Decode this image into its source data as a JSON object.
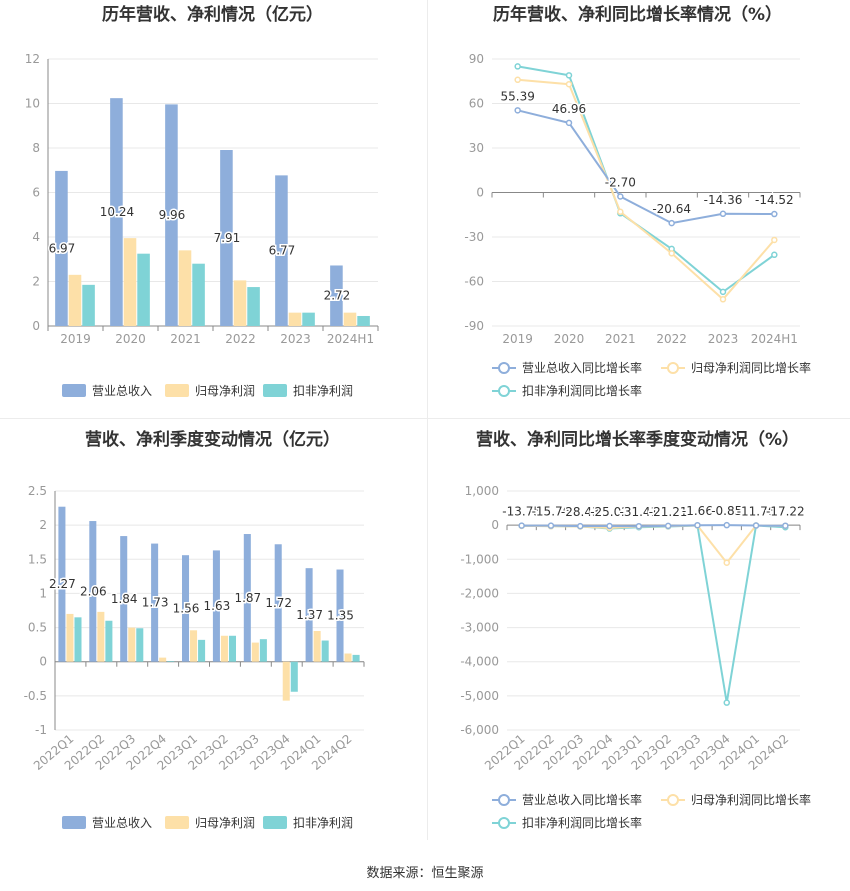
{
  "colors": {
    "revenue": "#8eaedb",
    "net_profit": "#fde0a8",
    "deducted_profit": "#7fd3d6",
    "grid": "#e8e8e8",
    "axis_text": "#999999",
    "title_text": "#333333"
  },
  "source": "数据来源：恒生聚源",
  "chart_data": [
    {
      "type": "bar",
      "title": "历年营收、净利情况（亿元）",
      "categories": [
        "2019",
        "2020",
        "2021",
        "2022",
        "2023",
        "2024H1"
      ],
      "series": [
        {
          "name": "营业总收入",
          "values": [
            6.97,
            10.24,
            9.96,
            7.91,
            6.77,
            2.72
          ],
          "labels": [
            "6.97",
            "10.24",
            "9.96",
            "7.91",
            "6.77",
            "2.72"
          ]
        },
        {
          "name": "归母净利润",
          "values": [
            2.3,
            3.95,
            3.4,
            2.05,
            0.6,
            0.6
          ]
        },
        {
          "name": "扣非净利润",
          "values": [
            1.85,
            3.25,
            2.8,
            1.75,
            0.6,
            0.45
          ]
        }
      ],
      "ylim": [
        0,
        12
      ],
      "yticks": [
        0,
        2,
        4,
        6,
        8,
        10,
        12
      ],
      "ytick_labels": [
        "0",
        "2",
        "4",
        "6",
        "8",
        "10",
        "12"
      ],
      "legend": "bottom"
    },
    {
      "type": "line",
      "title": "历年营收、净利同比增长率情况（%）",
      "categories": [
        "2019",
        "2020",
        "2021",
        "2022",
        "2023",
        "2024H1"
      ],
      "series": [
        {
          "name": "营业总收入同比增长率",
          "values": [
            55.39,
            46.96,
            -2.7,
            -20.64,
            -14.36,
            -14.52
          ],
          "labels": [
            "55.39",
            "46.96",
            "-2.70",
            "-20.64",
            "-14.36",
            "-14.52"
          ]
        },
        {
          "name": "归母净利润同比增长率",
          "values": [
            76,
            73,
            -13,
            -41,
            -72,
            -32
          ]
        },
        {
          "name": "扣非净利润同比增长率",
          "values": [
            85,
            79,
            -14,
            -38,
            -67,
            -42
          ]
        }
      ],
      "ylim": [
        -90,
        90
      ],
      "yticks": [
        -90,
        -60,
        -30,
        0,
        30,
        60,
        90
      ],
      "ytick_labels": [
        "-90",
        "-60",
        "-30",
        "0",
        "30",
        "60",
        "90"
      ],
      "legend": "bottom"
    },
    {
      "type": "bar",
      "title": "营收、净利季度变动情况（亿元）",
      "categories": [
        "2022Q1",
        "2022Q2",
        "2022Q3",
        "2022Q4",
        "2023Q1",
        "2023Q2",
        "2023Q3",
        "2023Q4",
        "2024Q1",
        "2024Q2"
      ],
      "series": [
        {
          "name": "营业总收入",
          "values": [
            2.27,
            2.06,
            1.84,
            1.73,
            1.56,
            1.63,
            1.87,
            1.72,
            1.37,
            1.35
          ],
          "labels": [
            "2.27",
            "2.06",
            "1.84",
            "1.73",
            "1.56",
            "1.63",
            "1.87",
            "1.72",
            "1.37",
            "1.35"
          ]
        },
        {
          "name": "归母净利润",
          "values": [
            0.7,
            0.73,
            0.5,
            0.06,
            0.46,
            0.38,
            0.28,
            -0.57,
            0.45,
            0.12
          ]
        },
        {
          "name": "扣非净利润",
          "values": [
            0.65,
            0.6,
            0.49,
            0.01,
            0.32,
            0.38,
            0.33,
            -0.44,
            0.31,
            0.1
          ]
        }
      ],
      "ylim": [
        -1,
        2.5
      ],
      "yticks": [
        -1,
        -0.5,
        0,
        0.5,
        1,
        1.5,
        2,
        2.5
      ],
      "ytick_labels": [
        "-1",
        "-0.5",
        "0",
        "0.5",
        "1",
        "1.5",
        "2",
        "2.5"
      ],
      "legend": "bottom"
    },
    {
      "type": "line",
      "title": "营收、净利同比增长率季度变动情况（%）",
      "categories": [
        "2022Q1",
        "2022Q2",
        "2022Q3",
        "2022Q4",
        "2023Q1",
        "2023Q2",
        "2023Q3",
        "2023Q4",
        "2024Q1",
        "2024Q2"
      ],
      "series": [
        {
          "name": "营业总收入同比增长率",
          "values": [
            -13.75,
            -15.76,
            -28.43,
            -25.02,
            -31.41,
            -21.21,
            -1.66,
            -0.85,
            -11.76,
            -17.22
          ],
          "labels": [
            "-13.75",
            "-15.76",
            "-28.43",
            "-25.02",
            "-31.41",
            "-21.21",
            "-1.66",
            "-0.85",
            "-11.76",
            "-17.22"
          ]
        },
        {
          "name": "归母净利润同比增长率",
          "values": [
            -20,
            -30,
            -40,
            -80,
            -40,
            -30,
            -10,
            -1100,
            -10,
            -20
          ]
        },
        {
          "name": "扣非净利润同比增长率",
          "values": [
            -20,
            -30,
            -40,
            -100,
            -60,
            -40,
            -10,
            -5200,
            -10,
            -60
          ]
        }
      ],
      "ylim": [
        -6000,
        1000
      ],
      "yticks": [
        -6000,
        -5000,
        -4000,
        -3000,
        -2000,
        -1000,
        0,
        1000
      ],
      "ytick_labels": [
        "-6,000",
        "-5,000",
        "-4,000",
        "-3,000",
        "-2,000",
        "-1,000",
        "0",
        "1,000"
      ],
      "legend": "bottom"
    }
  ]
}
